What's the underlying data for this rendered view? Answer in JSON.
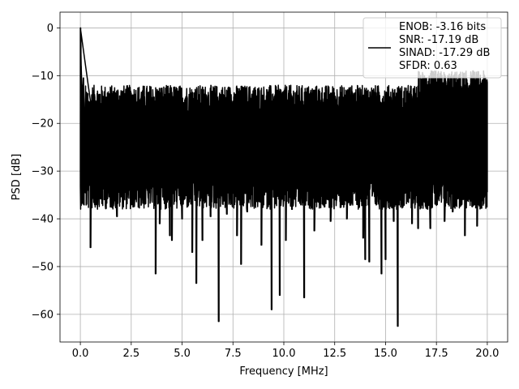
{
  "chart_data": {
    "type": "line",
    "title": "",
    "xlabel": "Frequency [MHz]",
    "ylabel": "PSD [dB]",
    "xlim": [
      -1.0,
      21.0
    ],
    "ylim": [
      -65.8,
      3.3
    ],
    "xticks": [
      0.0,
      2.5,
      5.0,
      7.5,
      10.0,
      12.5,
      15.0,
      17.5,
      20.0
    ],
    "xtick_labels": [
      "0.0",
      "2.5",
      "5.0",
      "7.5",
      "10.0",
      "12.5",
      "15.0",
      "17.5",
      "20.0"
    ],
    "yticks": [
      0,
      -10,
      -20,
      -30,
      -40,
      -50,
      -60
    ],
    "ytick_labels": [
      "0",
      "−10",
      "−20",
      "−30",
      "−40",
      "−50",
      "−60"
    ],
    "grid": true,
    "legend_position": "top-right",
    "colors": {
      "line": "#000000",
      "grid": "#b0b0b0",
      "axes": "#000000"
    },
    "series": [
      {
        "legend_lines": [
          "ENOB: -3.16 bits",
          "SNR: -17.19 dB",
          "SINAD: -17.29 dB",
          "SFDR: 0.63"
        ],
        "x_range": [
          0.0,
          20.0
        ],
        "baseline_db": -24,
        "early_peaks": [
          [
            0.0,
            0.0
          ],
          [
            0.02,
            -3.5
          ],
          [
            0.04,
            -8.0
          ],
          [
            0.07,
            -12.0
          ],
          [
            0.1,
            -16.5
          ],
          [
            0.15,
            -10.5
          ],
          [
            0.2,
            -20.0
          ],
          [
            0.3,
            -13.5
          ],
          [
            0.45,
            -18.0
          ],
          [
            0.5,
            -15.5
          ]
        ],
        "late_peaks": [
          [
            16.7,
            -13.5
          ],
          [
            17.0,
            -10.5
          ],
          [
            17.25,
            -9.0
          ],
          [
            17.5,
            -14.5
          ],
          [
            17.8,
            -11.5
          ],
          [
            18.0,
            -13.0
          ],
          [
            18.3,
            -12.5
          ],
          [
            18.6,
            -10.0
          ],
          [
            18.9,
            -12.0
          ],
          [
            19.3,
            -9.0
          ],
          [
            19.6,
            -12.5
          ],
          [
            19.9,
            -10.5
          ]
        ],
        "deep_dips": [
          [
            0.35,
            -34.0
          ],
          [
            0.5,
            -46.0
          ],
          [
            0.8,
            -33.0
          ],
          [
            1.8,
            -39.5
          ],
          [
            2.6,
            -37.5
          ],
          [
            3.7,
            -51.5
          ],
          [
            3.9,
            -41.0
          ],
          [
            4.4,
            -43.5
          ],
          [
            4.5,
            -44.5
          ],
          [
            5.0,
            -40.0
          ],
          [
            5.5,
            -47.0
          ],
          [
            5.7,
            -53.5
          ],
          [
            6.0,
            -44.5
          ],
          [
            6.4,
            -39.5
          ],
          [
            6.8,
            -61.5
          ],
          [
            7.2,
            -39.0
          ],
          [
            7.7,
            -43.5
          ],
          [
            7.9,
            -49.5
          ],
          [
            8.2,
            -38.5
          ],
          [
            8.9,
            -45.5
          ],
          [
            9.4,
            -59.0
          ],
          [
            9.8,
            -56.0
          ],
          [
            10.1,
            -44.5
          ],
          [
            10.4,
            -38.0
          ],
          [
            11.0,
            -56.5
          ],
          [
            11.5,
            -42.5
          ],
          [
            12.0,
            -37.5
          ],
          [
            12.3,
            -40.5
          ],
          [
            13.1,
            -40.0
          ],
          [
            13.6,
            -37.0
          ],
          [
            13.9,
            -44.0
          ],
          [
            14.0,
            -48.5
          ],
          [
            14.2,
            -49.0
          ],
          [
            14.8,
            -51.5
          ],
          [
            15.0,
            -48.5
          ],
          [
            15.4,
            -40.5
          ],
          [
            15.6,
            -62.5
          ],
          [
            16.3,
            -41.0
          ],
          [
            16.6,
            -42.0
          ],
          [
            17.2,
            -42.0
          ],
          [
            17.9,
            -40.5
          ],
          [
            18.3,
            -38.5
          ],
          [
            18.9,
            -43.5
          ],
          [
            19.5,
            -41.5
          ]
        ]
      }
    ]
  }
}
